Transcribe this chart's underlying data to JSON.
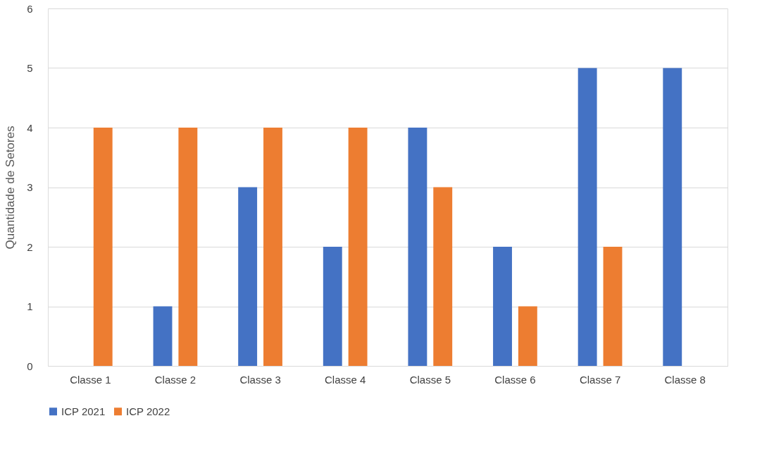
{
  "chart_data": {
    "type": "bar",
    "ylabel": "Quantidade de Setores",
    "categories": [
      "Classe 1",
      "Classe 2",
      "Classe 3",
      "Classe 4",
      "Classe 5",
      "Classe 6",
      "Classe 7",
      "Classe 8"
    ],
    "series": [
      {
        "name": "ICP 2021",
        "color": "#4472c4",
        "values": [
          0,
          1,
          3,
          2,
          4,
          2,
          5,
          5
        ]
      },
      {
        "name": "ICP 2022",
        "color": "#ed7d31",
        "values": [
          4,
          4,
          4,
          4,
          3,
          1,
          2,
          0
        ]
      }
    ],
    "ylim": [
      0,
      6
    ],
    "yticks": [
      0,
      1,
      2,
      3,
      4,
      5,
      6
    ],
    "grid": "y",
    "legend": "bottom"
  }
}
